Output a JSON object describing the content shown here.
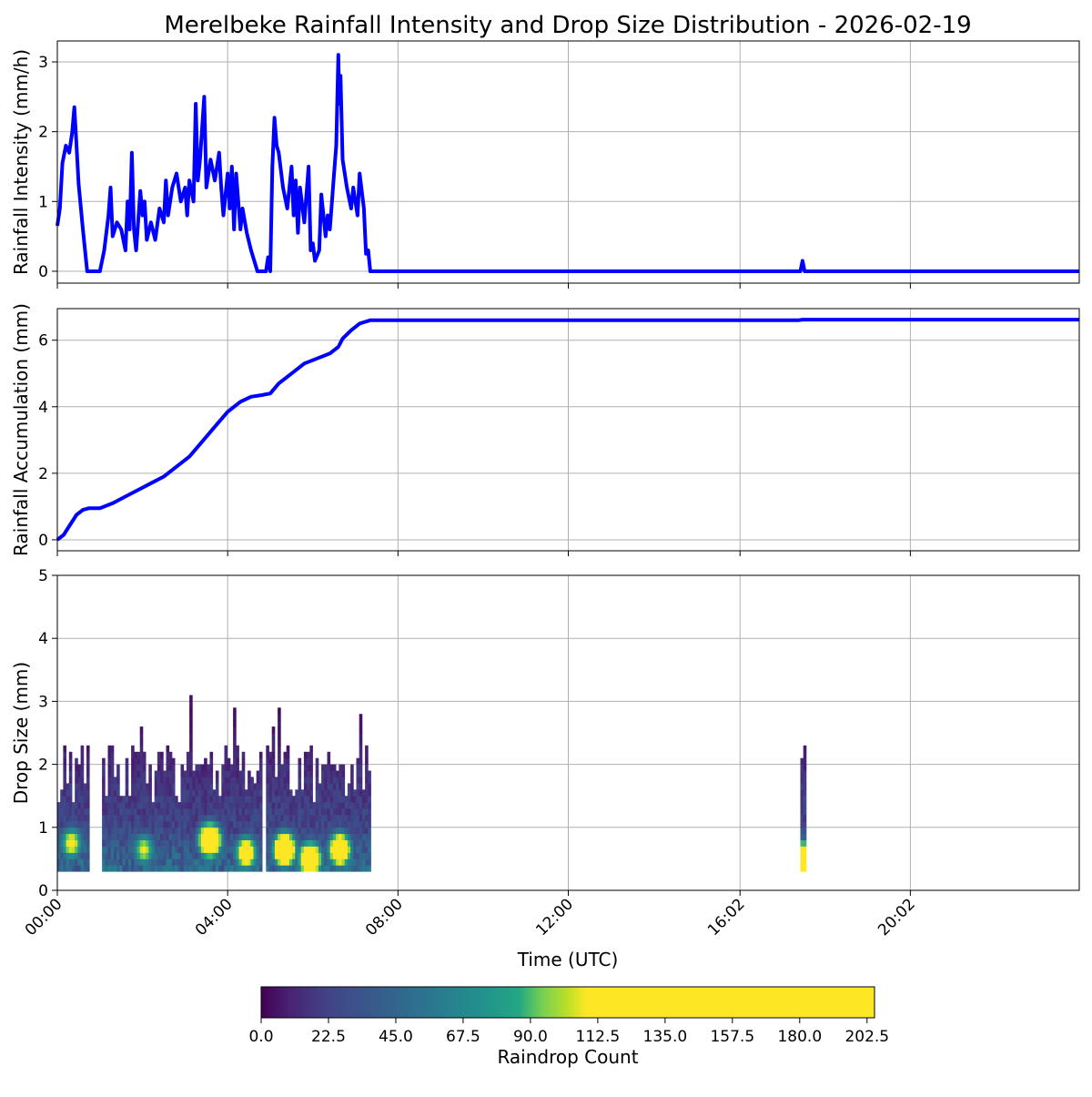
{
  "chart_data": {
    "title": "Merelbeke Rainfall Intensity and Drop Size Distribution - 2026-02-19",
    "xlabel": "Time (UTC)",
    "x_ticks": [
      {
        "hour": 0,
        "label": "00:00"
      },
      {
        "hour": 4,
        "label": "04:00"
      },
      {
        "hour": 8,
        "label": "08:00"
      },
      {
        "hour": 12,
        "label": "12:00"
      },
      {
        "hour": 16.033,
        "label": "16:02"
      },
      {
        "hour": 20.033,
        "label": "20:02"
      }
    ],
    "x_range_hours": [
      0,
      24
    ],
    "grid": true,
    "panels": [
      {
        "type": "line",
        "ylabel": "Rainfall Intensity (mm/h)",
        "ylim": [
          -0.17,
          3.3
        ],
        "yticks": [
          0,
          1,
          2,
          3
        ],
        "color": "#0000ff",
        "points": [
          [
            0,
            0.65
          ],
          [
            0.06,
            0.9
          ],
          [
            0.12,
            1.55
          ],
          [
            0.2,
            1.8
          ],
          [
            0.28,
            1.7
          ],
          [
            0.35,
            2.0
          ],
          [
            0.4,
            2.35
          ],
          [
            0.45,
            1.8
          ],
          [
            0.5,
            1.25
          ],
          [
            0.6,
            0.6
          ],
          [
            0.7,
            0.0
          ],
          [
            1.0,
            0.0
          ],
          [
            1.1,
            0.3
          ],
          [
            1.2,
            0.8
          ],
          [
            1.25,
            1.2
          ],
          [
            1.3,
            0.5
          ],
          [
            1.4,
            0.7
          ],
          [
            1.5,
            0.6
          ],
          [
            1.6,
            0.3
          ],
          [
            1.65,
            1.0
          ],
          [
            1.7,
            0.6
          ],
          [
            1.75,
            1.7
          ],
          [
            1.8,
            0.6
          ],
          [
            1.85,
            0.3
          ],
          [
            1.95,
            1.15
          ],
          [
            2.0,
            0.8
          ],
          [
            2.05,
            1.0
          ],
          [
            2.1,
            0.45
          ],
          [
            2.2,
            0.7
          ],
          [
            2.3,
            0.45
          ],
          [
            2.4,
            0.9
          ],
          [
            2.5,
            0.7
          ],
          [
            2.55,
            1.3
          ],
          [
            2.6,
            0.8
          ],
          [
            2.7,
            1.2
          ],
          [
            2.8,
            1.4
          ],
          [
            2.9,
            1.0
          ],
          [
            3.0,
            1.2
          ],
          [
            3.05,
            0.8
          ],
          [
            3.1,
            1.3
          ],
          [
            3.2,
            1.0
          ],
          [
            3.25,
            2.4
          ],
          [
            3.3,
            1.3
          ],
          [
            3.35,
            1.6
          ],
          [
            3.45,
            2.5
          ],
          [
            3.5,
            1.2
          ],
          [
            3.6,
            1.6
          ],
          [
            3.7,
            1.3
          ],
          [
            3.8,
            1.7
          ],
          [
            3.85,
            1.2
          ],
          [
            3.9,
            0.8
          ],
          [
            4.0,
            1.4
          ],
          [
            4.05,
            0.9
          ],
          [
            4.1,
            1.5
          ],
          [
            4.15,
            0.6
          ],
          [
            4.2,
            1.4
          ],
          [
            4.3,
            0.6
          ],
          [
            4.35,
            0.9
          ],
          [
            4.45,
            0.55
          ],
          [
            4.55,
            0.3
          ],
          [
            4.7,
            0.0
          ],
          [
            4.9,
            0.0
          ],
          [
            4.95,
            0.2
          ],
          [
            5.0,
            0.0
          ],
          [
            5.05,
            1.5
          ],
          [
            5.1,
            2.2
          ],
          [
            5.15,
            1.8
          ],
          [
            5.2,
            1.7
          ],
          [
            5.3,
            1.2
          ],
          [
            5.4,
            0.9
          ],
          [
            5.5,
            1.5
          ],
          [
            5.55,
            0.8
          ],
          [
            5.6,
            1.3
          ],
          [
            5.65,
            0.55
          ],
          [
            5.7,
            1.2
          ],
          [
            5.8,
            0.7
          ],
          [
            5.9,
            1.5
          ],
          [
            5.95,
            0.3
          ],
          [
            6.0,
            0.4
          ],
          [
            6.05,
            0.15
          ],
          [
            6.15,
            0.3
          ],
          [
            6.2,
            1.1
          ],
          [
            6.3,
            0.5
          ],
          [
            6.35,
            0.8
          ],
          [
            6.4,
            0.6
          ],
          [
            6.5,
            1.4
          ],
          [
            6.55,
            1.8
          ],
          [
            6.6,
            3.1
          ],
          [
            6.62,
            2.4
          ],
          [
            6.65,
            2.8
          ],
          [
            6.7,
            1.6
          ],
          [
            6.8,
            1.2
          ],
          [
            6.9,
            0.9
          ],
          [
            6.95,
            1.2
          ],
          [
            7.05,
            0.8
          ],
          [
            7.1,
            1.4
          ],
          [
            7.2,
            0.9
          ],
          [
            7.25,
            0.25
          ],
          [
            7.3,
            0.3
          ],
          [
            7.35,
            0.0
          ],
          [
            17.45,
            0.0
          ],
          [
            17.5,
            0.15
          ],
          [
            17.55,
            0.0
          ],
          [
            24,
            0.0
          ]
        ]
      },
      {
        "type": "line",
        "ylabel": "Rainfall Accumulation (mm)",
        "ylim": [
          -0.33,
          6.95
        ],
        "yticks": [
          0,
          2,
          4,
          6
        ],
        "color": "#0000ff",
        "points": [
          [
            0,
            0.0
          ],
          [
            0.15,
            0.15
          ],
          [
            0.3,
            0.45
          ],
          [
            0.45,
            0.75
          ],
          [
            0.6,
            0.9
          ],
          [
            0.75,
            0.95
          ],
          [
            1.0,
            0.95
          ],
          [
            1.3,
            1.1
          ],
          [
            1.6,
            1.3
          ],
          [
            1.9,
            1.5
          ],
          [
            2.2,
            1.7
          ],
          [
            2.5,
            1.9
          ],
          [
            2.8,
            2.2
          ],
          [
            3.1,
            2.5
          ],
          [
            3.4,
            2.95
          ],
          [
            3.7,
            3.4
          ],
          [
            4.0,
            3.85
          ],
          [
            4.3,
            4.15
          ],
          [
            4.55,
            4.3
          ],
          [
            4.8,
            4.35
          ],
          [
            5.0,
            4.4
          ],
          [
            5.2,
            4.7
          ],
          [
            5.5,
            5.0
          ],
          [
            5.8,
            5.3
          ],
          [
            6.1,
            5.45
          ],
          [
            6.4,
            5.6
          ],
          [
            6.6,
            5.8
          ],
          [
            6.7,
            6.05
          ],
          [
            6.9,
            6.3
          ],
          [
            7.1,
            6.5
          ],
          [
            7.35,
            6.6
          ],
          [
            17.4,
            6.6
          ],
          [
            17.5,
            6.62
          ],
          [
            24,
            6.62
          ]
        ]
      },
      {
        "type": "heatmap",
        "ylabel": "Drop Size (mm)",
        "ylim": [
          0,
          5
        ],
        "yticks": [
          0,
          1,
          2,
          3,
          4,
          5
        ],
        "colorbar": {
          "label": "Raindrop Count",
          "range": [
            0,
            205
          ],
          "ticks": [
            "0.0",
            "22.5",
            "45.0",
            "67.5",
            "90.0",
            "112.5",
            "135.0",
            "157.5",
            "180.0",
            "202.5"
          ]
        },
        "rain_periods_hours": [
          [
            0,
            0.7
          ],
          [
            1.05,
            4.8
          ],
          [
            4.9,
            7.35
          ],
          [
            17.45,
            17.52
          ]
        ],
        "drop_size_range_mm": [
          0.3,
          3.25
        ],
        "hot_spots": [
          {
            "hour": 0.3,
            "size": 0.7,
            "count": 120
          },
          {
            "hour": 2.0,
            "size": 0.6,
            "count": 110
          },
          {
            "hour": 3.55,
            "size": 0.75,
            "count": 200
          },
          {
            "hour": 4.4,
            "size": 0.55,
            "count": 150
          },
          {
            "hour": 5.3,
            "size": 0.6,
            "count": 200
          },
          {
            "hour": 5.9,
            "size": 0.45,
            "count": 190
          },
          {
            "hour": 6.6,
            "size": 0.6,
            "count": 180
          },
          {
            "hour": 17.48,
            "size": 0.45,
            "count": 200
          }
        ]
      }
    ]
  }
}
